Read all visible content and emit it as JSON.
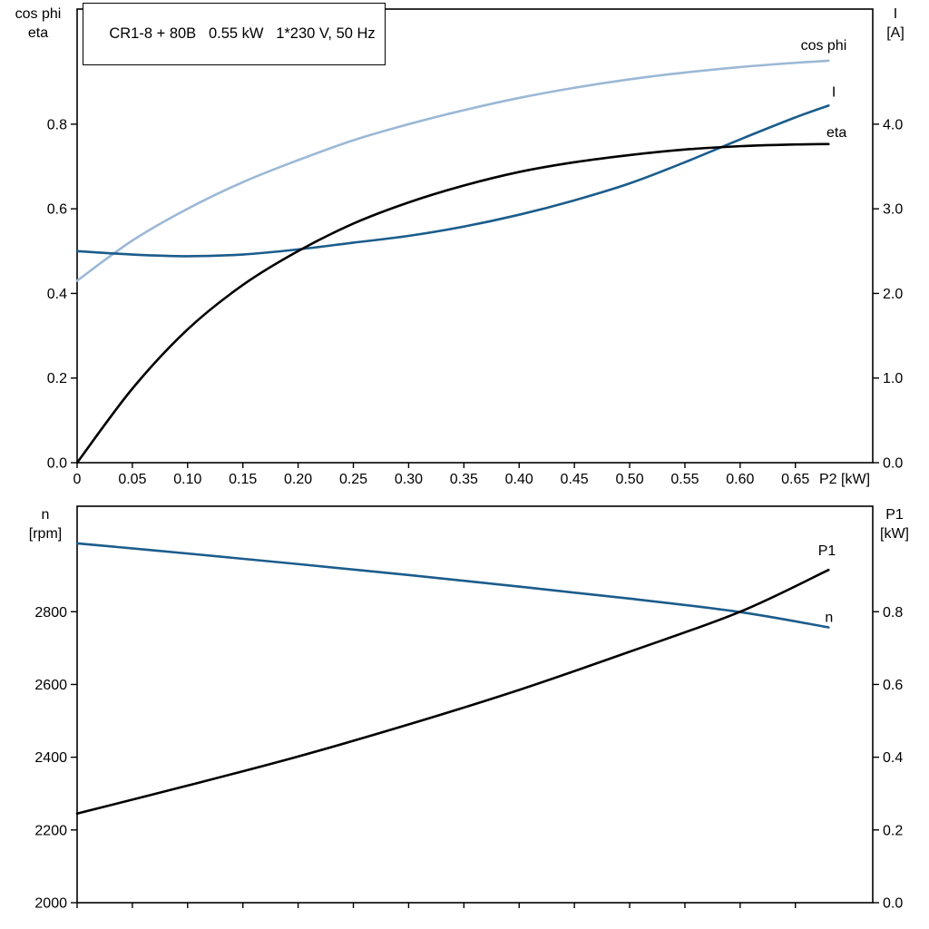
{
  "title_box": {
    "text": "CR1-8 + 80B   0.55 kW   1*230 V, 50 Hz"
  },
  "colors": {
    "light_blue": "#9cb8d6",
    "dark_blue": "#1b5c8c",
    "black": "#000000",
    "background": "#ffffff"
  },
  "chart_data": [
    {
      "type": "line",
      "title": "CR1-8 + 80B   0.55 kW   1*230 V, 50 Hz",
      "grid": false,
      "x_axis": {
        "label": "P2 [kW]",
        "min": 0,
        "max": 0.72,
        "ticks": [
          0,
          0.05,
          0.1,
          0.15,
          0.2,
          0.25,
          0.3,
          0.35,
          0.4,
          0.45,
          0.5,
          0.55,
          0.6,
          0.65
        ],
        "tick_labels": [
          "0",
          "0.05",
          "0.10",
          "0.15",
          "0.20",
          "0.25",
          "0.30",
          "0.35",
          "0.40",
          "0.45",
          "0.50",
          "0.55",
          "0.60",
          "0.65"
        ]
      },
      "left_axis": {
        "label_lines": [
          "cos phi",
          "eta"
        ],
        "min": 0,
        "max": 1.072,
        "ticks": [
          0,
          0.2,
          0.4,
          0.6,
          0.8
        ],
        "tick_labels": [
          "0.0",
          "0.2",
          "0.4",
          "0.6",
          "0.8"
        ]
      },
      "right_axis": {
        "label_lines": [
          "I",
          "[A]"
        ],
        "min": 0,
        "max": 5.36,
        "ticks": [
          0,
          1,
          2,
          3,
          4
        ],
        "tick_labels": [
          "0.0",
          "1.0",
          "2.0",
          "3.0",
          "4.0"
        ]
      },
      "series": [
        {
          "name": "cos phi",
          "axis": "left",
          "color": "#9cb8d6",
          "label_dx": 20,
          "label_dy": -12,
          "x": [
            0,
            0.05,
            0.1,
            0.15,
            0.2,
            0.25,
            0.3,
            0.35,
            0.4,
            0.45,
            0.5,
            0.55,
            0.6,
            0.65,
            0.68
          ],
          "y": [
            0.43,
            0.525,
            0.6,
            0.663,
            0.715,
            0.762,
            0.8,
            0.833,
            0.862,
            0.886,
            0.906,
            0.922,
            0.935,
            0.945,
            0.95
          ]
        },
        {
          "name": "I",
          "axis": "right",
          "color": "#1b5c8c",
          "label_dx": 8,
          "label_dy": -10,
          "x": [
            0,
            0.05,
            0.1,
            0.15,
            0.2,
            0.25,
            0.3,
            0.35,
            0.4,
            0.45,
            0.5,
            0.55,
            0.6,
            0.65,
            0.68
          ],
          "y": [
            2.5,
            2.46,
            2.44,
            2.46,
            2.52,
            2.6,
            2.68,
            2.79,
            2.93,
            3.1,
            3.3,
            3.55,
            3.82,
            4.08,
            4.22
          ]
        },
        {
          "name": "eta",
          "axis": "left",
          "color": "#000000",
          "label_dx": 20,
          "label_dy": -8,
          "x": [
            0,
            0.05,
            0.1,
            0.15,
            0.2,
            0.25,
            0.3,
            0.35,
            0.4,
            0.45,
            0.5,
            0.55,
            0.6,
            0.65,
            0.68
          ],
          "y": [
            0,
            0.175,
            0.315,
            0.42,
            0.5,
            0.565,
            0.615,
            0.655,
            0.687,
            0.71,
            0.727,
            0.74,
            0.748,
            0.752,
            0.753
          ]
        }
      ]
    },
    {
      "type": "line",
      "title": "",
      "grid": false,
      "x_axis": {
        "label": "",
        "min": 0,
        "max": 0.72,
        "ticks": [
          0,
          0.05,
          0.1,
          0.15,
          0.2,
          0.25,
          0.3,
          0.35,
          0.4,
          0.45,
          0.5,
          0.55,
          0.6,
          0.65
        ],
        "tick_labels": []
      },
      "left_axis": {
        "label_lines": [
          "n",
          "[rpm]"
        ],
        "min": 2000,
        "max": 3090,
        "ticks": [
          2000,
          2200,
          2400,
          2600,
          2800
        ],
        "tick_labels": [
          "2000",
          "2200",
          "2400",
          "2600",
          "2800"
        ]
      },
      "right_axis": {
        "label_lines": [
          "P1",
          "[kW]"
        ],
        "min": 0,
        "max": 1.09,
        "ticks": [
          0,
          0.2,
          0.4,
          0.6,
          0.8
        ],
        "tick_labels": [
          "0.0",
          "0.2",
          "0.4",
          "0.6",
          "0.8"
        ]
      },
      "series": [
        {
          "name": "n",
          "axis": "left",
          "color": "#1b5c8c",
          "label_dx": 5,
          "label_dy": -6,
          "x": [
            0,
            0.1,
            0.2,
            0.3,
            0.4,
            0.5,
            0.6,
            0.68
          ],
          "y": [
            2988,
            2960,
            2931,
            2901,
            2869,
            2836,
            2799,
            2757
          ]
        },
        {
          "name": "P1",
          "axis": "right",
          "color": "#000000",
          "label_dx": 8,
          "label_dy": -16,
          "x": [
            0,
            0.1,
            0.2,
            0.3,
            0.4,
            0.5,
            0.6,
            0.68
          ],
          "y": [
            0.245,
            0.322,
            0.402,
            0.49,
            0.585,
            0.69,
            0.8,
            0.915
          ]
        }
      ]
    }
  ]
}
